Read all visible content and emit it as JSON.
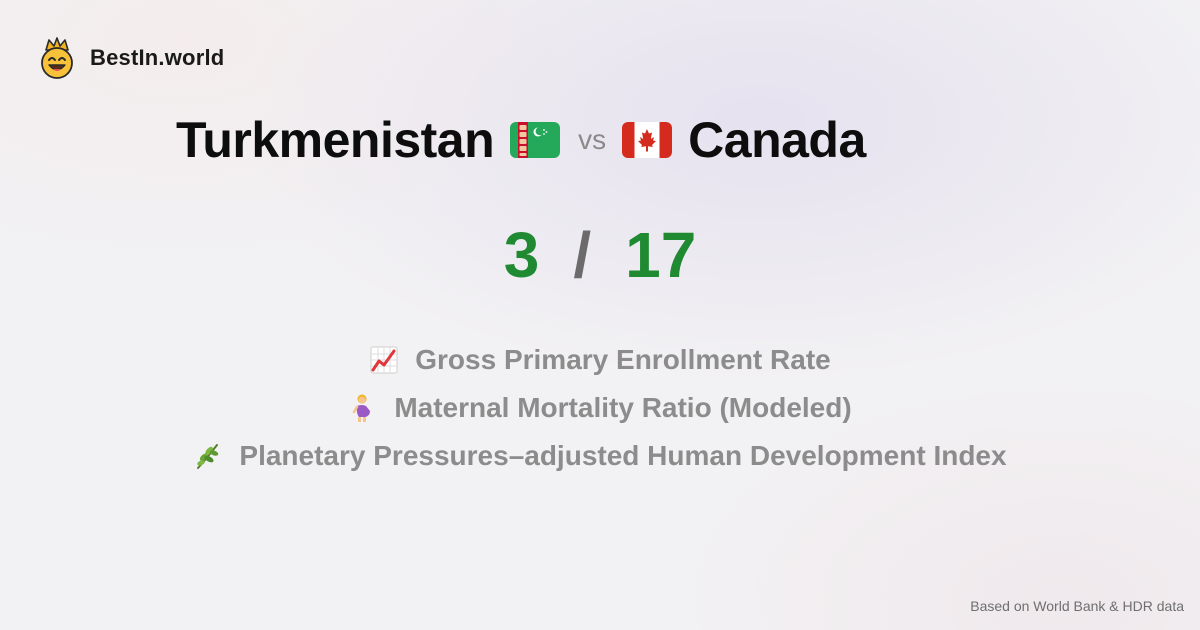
{
  "brand": {
    "name": "BestIn.world",
    "logo_icon": "crown-smiley-icon"
  },
  "comparison": {
    "country_a": "Turkmenistan",
    "country_a_flag": "turkmenistan-flag-icon",
    "vs_label": "vs",
    "country_b": "Canada",
    "country_b_flag": "canada-flag-icon"
  },
  "score": {
    "a": "3",
    "separator": "/",
    "b": "17",
    "color": "#1f8a32"
  },
  "metrics": [
    {
      "icon": "chart-increasing-icon",
      "label": "Gross Primary Enrollment Rate"
    },
    {
      "icon": "pregnant-woman-icon",
      "label": "Maternal Mortality Ratio (Modeled)"
    },
    {
      "icon": "herb-icon",
      "label": "Planetary Pressures–adjusted Human Development Index"
    }
  ],
  "footer": {
    "source": "Based on World Bank & HDR data"
  }
}
